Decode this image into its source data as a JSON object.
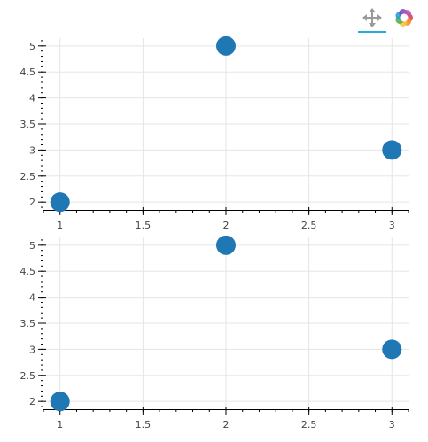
{
  "colors": {
    "marker": "#1f77b4",
    "grid": "#e5e5e5",
    "axis": "#000000",
    "toolbar_active": "#26aae1"
  },
  "toolbar": {
    "tools": [
      {
        "icon": "pan-icon",
        "active": true
      },
      {
        "icon": "bokeh-logo-icon",
        "active": false
      }
    ]
  },
  "chart_data": [
    {
      "type": "scatter",
      "x": [
        1,
        2,
        3
      ],
      "y": [
        2,
        5,
        3
      ],
      "xlim": [
        0.9,
        3.1
      ],
      "ylim": [
        1.85,
        5.15
      ],
      "xticks": [
        1,
        1.5,
        2,
        2.5,
        3
      ],
      "yticks": [
        2,
        2.5,
        3,
        3.5,
        4,
        4.5,
        5
      ],
      "grid": true
    },
    {
      "type": "scatter",
      "x": [
        1,
        2,
        3
      ],
      "y": [
        2,
        5,
        3
      ],
      "xlim": [
        0.9,
        3.1
      ],
      "ylim": [
        1.85,
        5.15
      ],
      "xticks": [
        1,
        1.5,
        2,
        2.5,
        3
      ],
      "yticks": [
        2,
        2.5,
        3,
        3.5,
        4,
        4.5,
        5
      ],
      "grid": true
    }
  ]
}
